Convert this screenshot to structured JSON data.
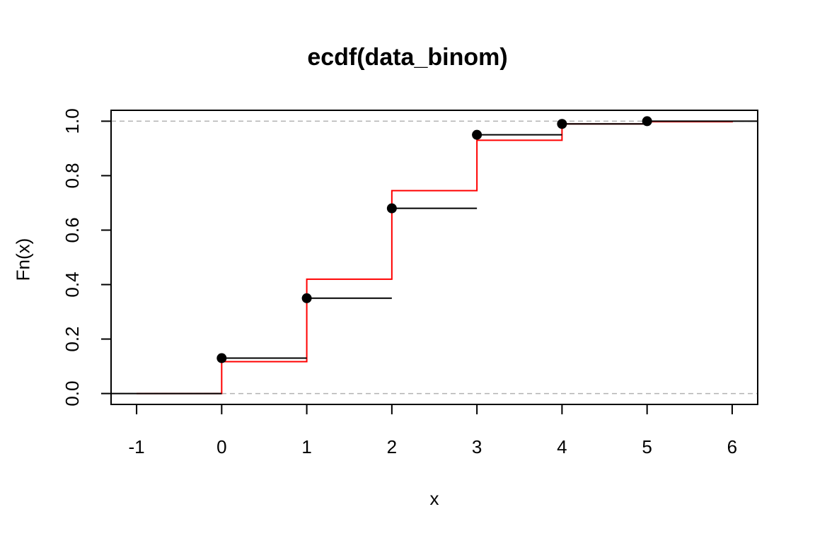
{
  "chart_data": {
    "type": "line",
    "title": "ecdf(data_binom)",
    "xlabel": "x",
    "ylabel": "Fn(x)",
    "xlim": [
      -1.3,
      6.3
    ],
    "ylim": [
      -0.04,
      1.04
    ],
    "x_ticks": [
      "-1",
      "0",
      "1",
      "2",
      "3",
      "4",
      "5",
      "6"
    ],
    "y_ticks": [
      "0.0",
      "0.2",
      "0.4",
      "0.6",
      "0.8",
      "1.0"
    ],
    "reference_lines": [
      0,
      1
    ],
    "series": [
      {
        "kind": "ecdf_steps",
        "color": "#000000",
        "points": [
          {
            "x": 0,
            "y": 0.13
          },
          {
            "x": 1,
            "y": 0.35
          },
          {
            "x": 2,
            "y": 0.68
          },
          {
            "x": 3,
            "y": 0.95
          },
          {
            "x": 4,
            "y": 0.99
          },
          {
            "x": 5,
            "y": 1.0
          }
        ]
      },
      {
        "kind": "theoretical_cdf",
        "color": "#ff0000",
        "x": [
          -1,
          0,
          1,
          2,
          3,
          4,
          5,
          6
        ],
        "y": [
          0.0,
          0.117,
          0.42,
          0.745,
          0.93,
          0.99,
          0.998,
          1.0
        ]
      }
    ]
  }
}
